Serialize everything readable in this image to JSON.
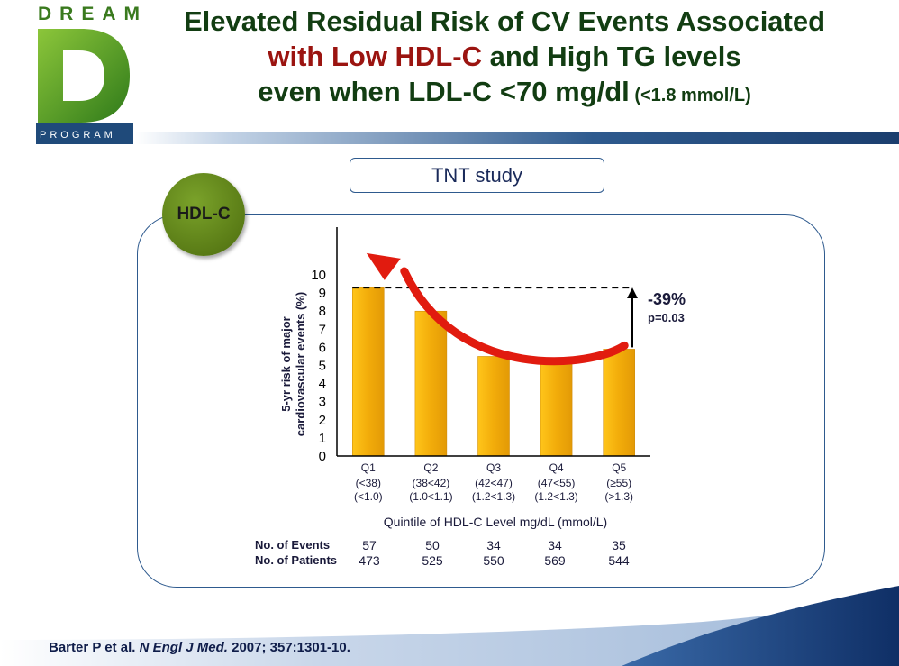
{
  "logo": {
    "top": "DREAM",
    "bottom": "PROGRAM",
    "letter": "D"
  },
  "title": {
    "line1": "Elevated Residual Risk of CV Events Associated",
    "line2_red": "with Low HDL-C",
    "line2_rest": " and High TG levels",
    "line3": "even when LDL-C <70 mg/dl",
    "line3_small": " (<1.8 mmol/L)"
  },
  "study_label": "TNT study",
  "badge": "HDL-C",
  "annotation": {
    "reduction": "-39%",
    "pvalue": "p=0.03"
  },
  "chart_data": {
    "type": "bar",
    "categories": [
      "Q1",
      "Q2",
      "Q3",
      "Q4",
      "Q5"
    ],
    "category_sublabels": [
      [
        "(<38)",
        "(<1.0)"
      ],
      [
        "(38<42)",
        "(1.0<1.1)"
      ],
      [
        "(42<47)",
        "(1.2<1.3)"
      ],
      [
        "(47<55)",
        "(1.2<1.3)"
      ],
      [
        "(≥55)",
        "(>1.3)"
      ]
    ],
    "values": [
      9.3,
      8.0,
      5.5,
      5.3,
      5.9
    ],
    "ylim": [
      0,
      10
    ],
    "yticks": [
      0,
      1,
      2,
      3,
      4,
      5,
      6,
      7,
      8,
      9,
      10
    ],
    "xlabel": "Quintile of HDL-C Level mg/dL (mmol/L)",
    "ylabel_line1": "5-yr risk of major",
    "ylabel_line2": "cardiovascular events (%)",
    "bar_color": "#f2ac0a",
    "trend_color": "#e11b0f"
  },
  "counts": {
    "events_label": "No. of Events",
    "patients_label": "No. of Patients",
    "events": [
      "57",
      "50",
      "34",
      "34",
      "35"
    ],
    "patients": [
      "473",
      "525",
      "550",
      "569",
      "544"
    ]
  },
  "citation": {
    "authors": "Barter P et al. ",
    "journal": "N Engl J Med.",
    "ref": " 2007; 357:1301-10."
  }
}
